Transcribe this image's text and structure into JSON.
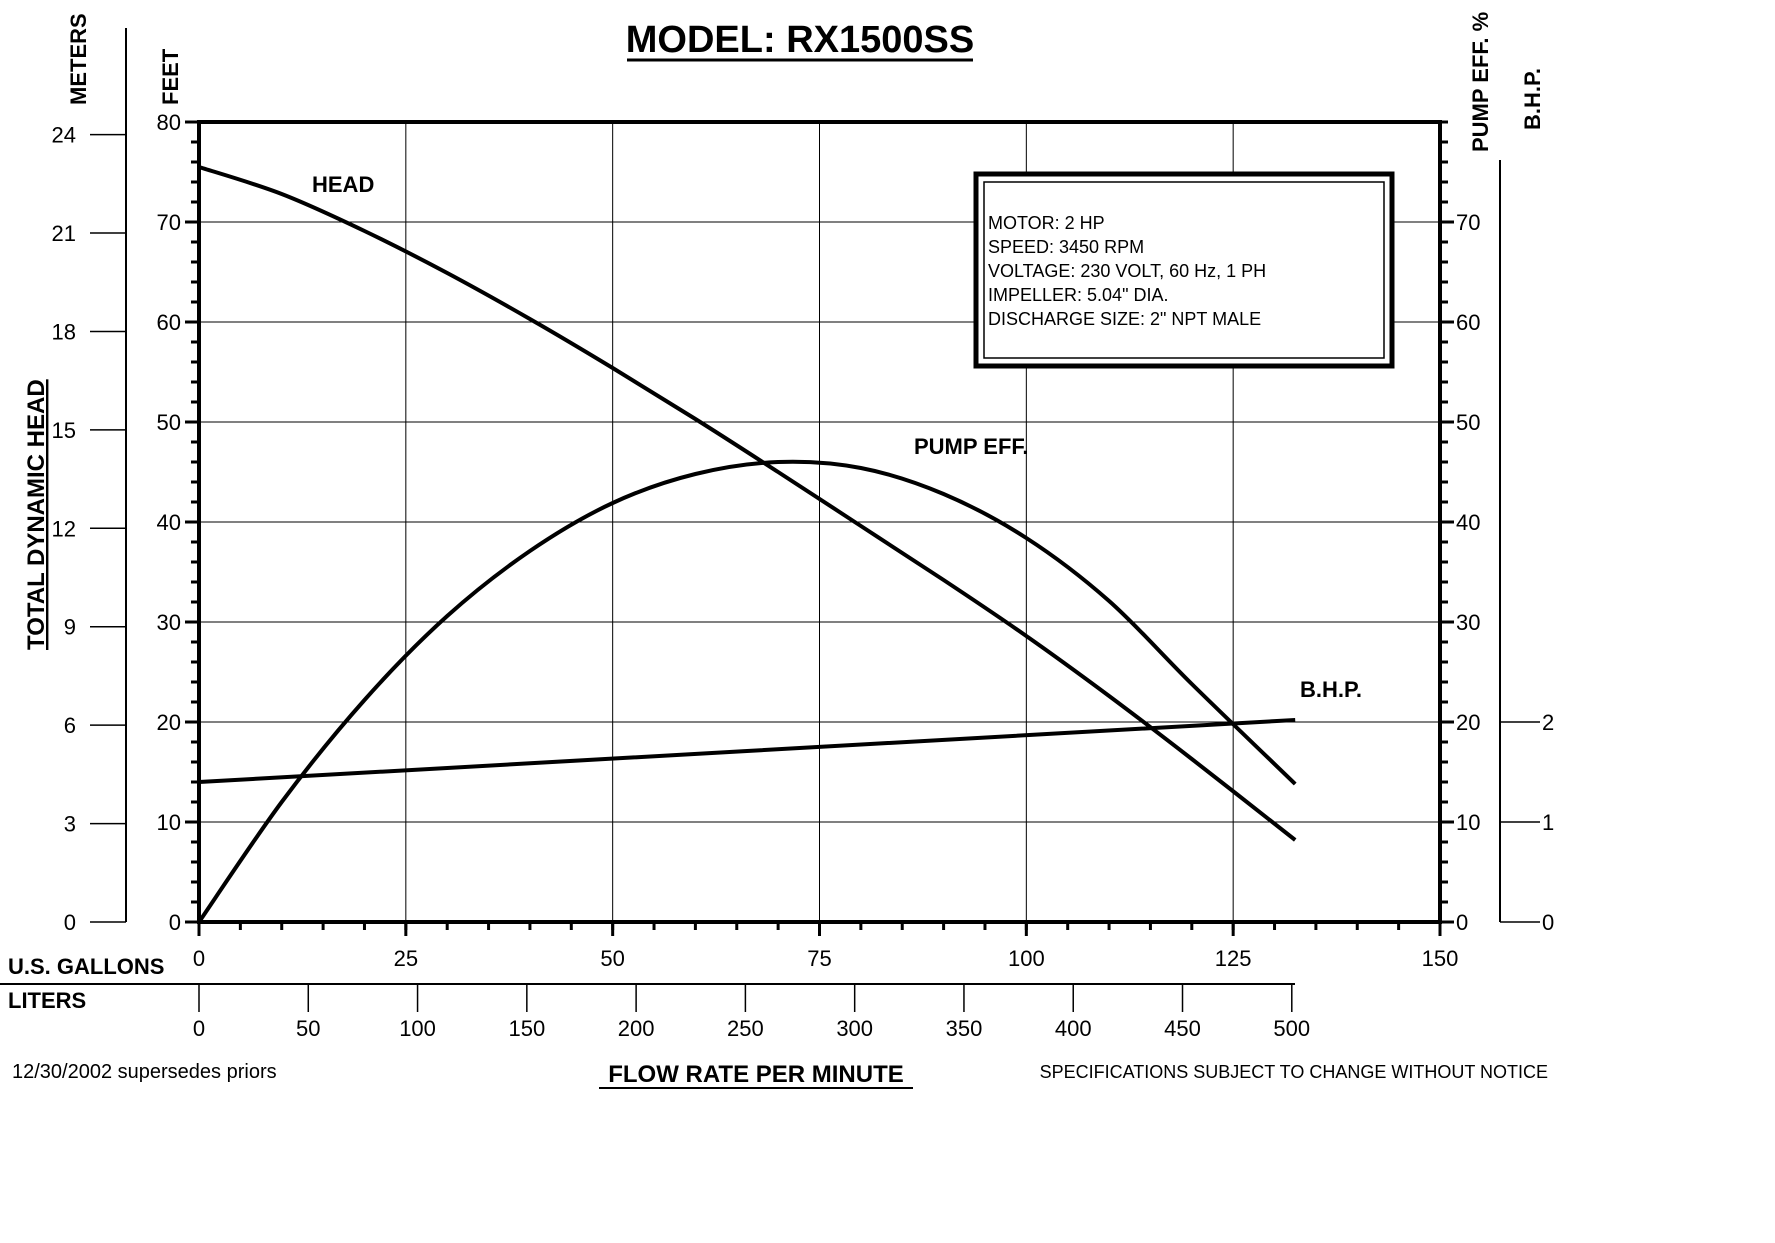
{
  "chart_data": {
    "type": "line",
    "title": "MODEL: RX1500SS",
    "x": {
      "label_top": "U.S. GALLONS",
      "ticks": [
        0,
        25,
        50,
        75,
        100,
        125,
        150
      ],
      "range": [
        0,
        150
      ]
    },
    "x_liters": {
      "label": "LITERS",
      "ticks": [
        0,
        50,
        100,
        150,
        200,
        250,
        300,
        350,
        400,
        450,
        500
      ]
    },
    "x_title": "FLOW RATE PER MINUTE",
    "y_left_meters": {
      "label": "METERS",
      "ticks": [
        0,
        3,
        6,
        9,
        12,
        15,
        18,
        21,
        24
      ]
    },
    "y_left_feet": {
      "label": "FEET",
      "ticks": [
        0,
        10,
        20,
        30,
        40,
        50,
        60,
        70,
        80
      ],
      "range": [
        0,
        80
      ]
    },
    "y_left_title": "TOTAL DYNAMIC HEAD",
    "y_right_eff": {
      "label": "PUMP EFF. %",
      "ticks": [
        0,
        10,
        20,
        30,
        40,
        50,
        60,
        70
      ]
    },
    "y_right_bhp": {
      "label": "B.H.P.",
      "ticks": [
        0,
        1,
        2
      ]
    },
    "series": [
      {
        "name": "HEAD",
        "x": [
          0,
          10,
          20,
          30,
          40,
          50,
          60,
          70,
          80,
          90,
          100,
          110,
          120,
          132.5
        ],
        "y": [
          75.5,
          72.8,
          69.1,
          64.9,
          60.3,
          55.4,
          50.3,
          45.0,
          39.6,
          34.2,
          28.6,
          22.6,
          16.3,
          8.2
        ]
      },
      {
        "name": "PUMP EFF.",
        "x": [
          0,
          10,
          20,
          30,
          40,
          50,
          60,
          70,
          80,
          90,
          100,
          110,
          120,
          132.5
        ],
        "y": [
          0,
          12.0,
          22.2,
          30.6,
          37.1,
          41.9,
          44.8,
          46.0,
          45.4,
          42.8,
          38.4,
          32.1,
          23.8,
          13.8
        ]
      },
      {
        "name": "B.H.P.",
        "x": [
          0,
          132.5
        ],
        "y": [
          1.4,
          2.02
        ]
      }
    ],
    "grid": true
  },
  "specs": {
    "lines": [
      "MOTOR: 2 HP",
      "SPEED: 3450 RPM",
      "VOLTAGE: 230 VOLT, 60 Hz, 1 PH",
      "IMPELLER: 5.04\" DIA.",
      "DISCHARGE SIZE: 2\" NPT MALE"
    ]
  },
  "footer": {
    "date": "12/30/2002  supersedes priors",
    "notice": "SPECIFICATIONS SUBJECT TO CHANGE WITHOUT NOTICE"
  }
}
